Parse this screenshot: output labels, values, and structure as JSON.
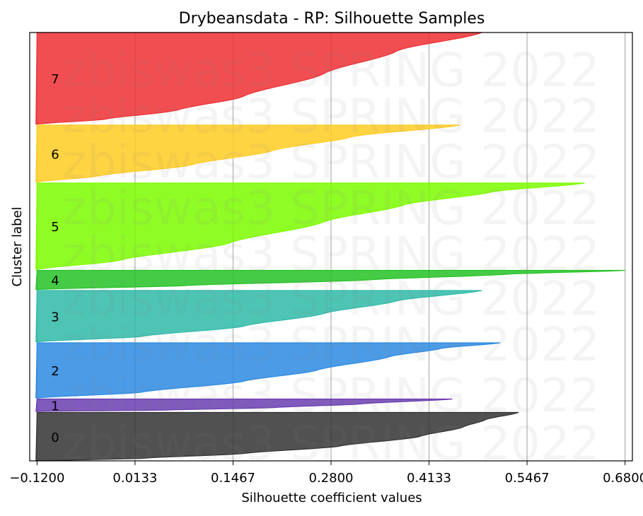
{
  "chart_data": {
    "type": "area",
    "title": "Drybeansdata - RP: Silhouette Samples",
    "xlabel": "Silhouette coefficient values",
    "ylabel": "Cluster label",
    "xlim": [
      -0.13,
      0.69
    ],
    "xticks": [
      "-0.1200",
      "0.0133",
      "0.1467",
      "0.2800",
      "0.4133",
      "0.5467",
      "0.6800"
    ],
    "xtick_values": [
      -0.12,
      0.0133,
      0.1467,
      0.28,
      0.4133,
      0.5467,
      0.68
    ],
    "grid": "vertical",
    "watermark": "zbiswas3 SPRING 2022",
    "clusters": [
      {
        "label": "0",
        "color": "#333333",
        "size": 1370,
        "max": 0.535,
        "profile": [
          [
            0,
            -0.12
          ],
          [
            0.05,
            0.02
          ],
          [
            0.15,
            0.16
          ],
          [
            0.3,
            0.29
          ],
          [
            0.5,
            0.4
          ],
          [
            0.7,
            0.46
          ],
          [
            0.85,
            0.49
          ],
          [
            1,
            0.535
          ]
        ]
      },
      {
        "label": "1",
        "color": "#6a3db0",
        "size": 350,
        "max": 0.445,
        "profile": [
          [
            0,
            -0.12
          ],
          [
            0.1,
            0.05
          ],
          [
            0.3,
            0.2
          ],
          [
            0.6,
            0.32
          ],
          [
            1,
            0.445
          ]
        ]
      },
      {
        "label": "2",
        "color": "#2b8ae3",
        "size": 1560,
        "max": 0.51,
        "profile": [
          [
            0,
            -0.12
          ],
          [
            0.1,
            0.02
          ],
          [
            0.3,
            0.16
          ],
          [
            0.5,
            0.26
          ],
          [
            0.75,
            0.36
          ],
          [
            0.9,
            0.43
          ],
          [
            1,
            0.51
          ]
        ]
      },
      {
        "label": "3",
        "color": "#2fbaa8",
        "size": 1450,
        "max": 0.485,
        "profile": [
          [
            0,
            -0.12
          ],
          [
            0.1,
            0.02
          ],
          [
            0.3,
            0.16
          ],
          [
            0.55,
            0.27
          ],
          [
            0.8,
            0.37
          ],
          [
            1,
            0.485
          ]
        ]
      },
      {
        "label": "4",
        "color": "#26c226",
        "size": 540,
        "max": 0.68,
        "profile": [
          [
            0,
            -0.12
          ],
          [
            0.2,
            0.08
          ],
          [
            0.5,
            0.33
          ],
          [
            0.8,
            0.52
          ],
          [
            1,
            0.68
          ]
        ]
      },
      {
        "label": "5",
        "color": "#7cfc00",
        "size": 2440,
        "max": 0.625,
        "profile": [
          [
            0,
            -0.12
          ],
          [
            0.1,
            -0.01
          ],
          [
            0.3,
            0.14
          ],
          [
            0.55,
            0.27
          ],
          [
            0.75,
            0.38
          ],
          [
            0.9,
            0.5
          ],
          [
            1,
            0.625
          ]
        ]
      },
      {
        "label": "6",
        "color": "#ffcc22",
        "size": 1610,
        "max": 0.455,
        "profile": [
          [
            0,
            -0.12
          ],
          [
            0.1,
            -0.04
          ],
          [
            0.3,
            0.09
          ],
          [
            0.55,
            0.2
          ],
          [
            0.8,
            0.31
          ],
          [
            1,
            0.455
          ]
        ]
      },
      {
        "label": "7",
        "color": "#ee2f33",
        "size": 2590,
        "max": 0.485,
        "profile": [
          [
            0,
            -0.12
          ],
          [
            0.05,
            -0.03
          ],
          [
            0.15,
            0.07
          ],
          [
            0.3,
            0.16
          ],
          [
            0.55,
            0.27
          ],
          [
            0.8,
            0.37
          ],
          [
            1,
            0.485
          ]
        ]
      }
    ]
  }
}
